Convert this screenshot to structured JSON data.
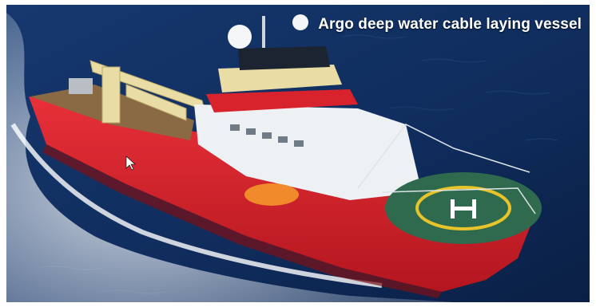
{
  "caption": "Argo deep water cable laying vessel",
  "image": {
    "subject": "vessel-photo",
    "colors": {
      "sea": "#0f2c5c",
      "hull": "#d9232c",
      "superstructure": "#eef1f3",
      "crane": "#e9dca4",
      "helideck": "#2f6a4f",
      "wake": "#ffffff"
    }
  }
}
